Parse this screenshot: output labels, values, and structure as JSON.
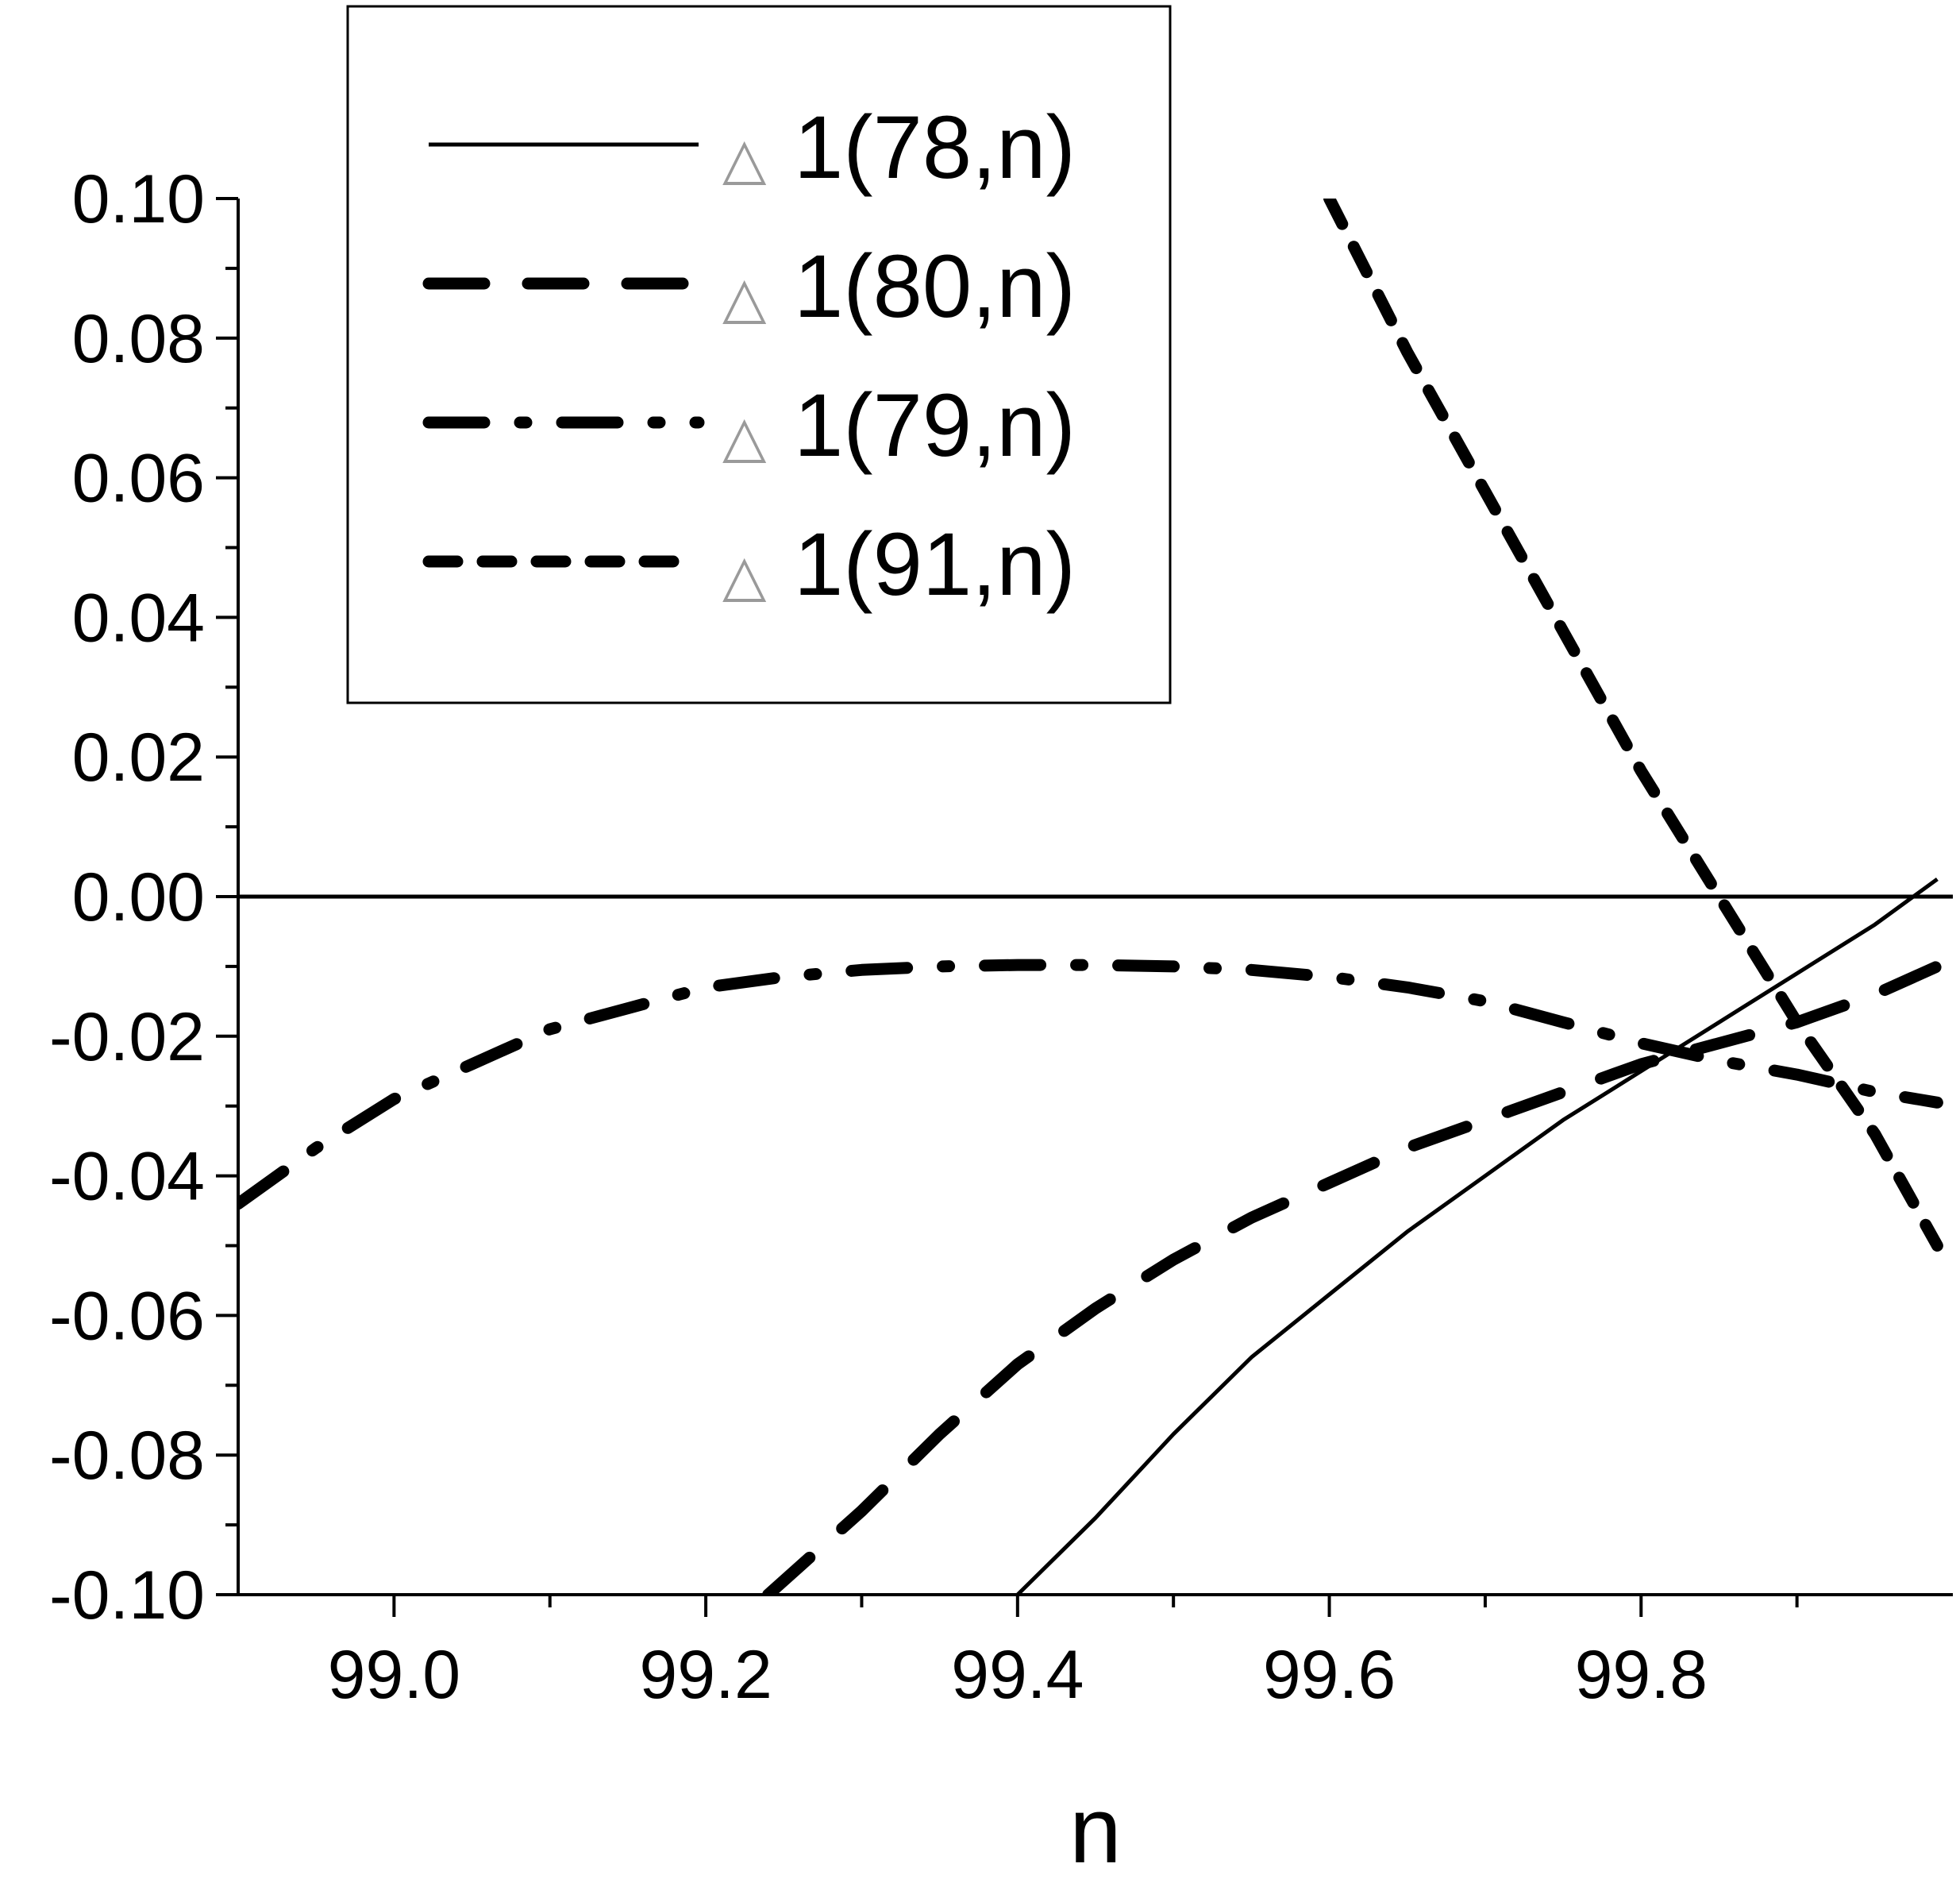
{
  "chart_data": {
    "type": "line",
    "title": "",
    "xlabel": "n",
    "ylabel": "",
    "xlim": [
      98.9,
      100.0
    ],
    "ylim": [
      -0.1,
      0.1
    ],
    "x_ticks": [
      99.0,
      99.2,
      99.4,
      99.6,
      99.8
    ],
    "x_tick_labels": [
      "99.0",
      "99.2",
      "99.4",
      "99.6",
      "99.8"
    ],
    "y_ticks": [
      0.1,
      0.08,
      0.06,
      0.04,
      0.02,
      0.0,
      -0.02,
      -0.04,
      -0.06,
      -0.08,
      -0.1
    ],
    "y_tick_labels": [
      "0.10",
      "0.08",
      "0.06",
      "0.04",
      "0.02",
      "0.00",
      "-0.02",
      "-0.04",
      "-0.06",
      "-0.08",
      "-0.10"
    ],
    "grid": false,
    "legend_position": "top-left",
    "reference_line": {
      "y": 0.0,
      "style": "solid"
    },
    "series": [
      {
        "name": "1(78,n)",
        "symbol": "△",
        "style": "solid",
        "x": [
          99.4,
          99.45,
          99.5,
          99.55,
          99.6,
          99.65,
          99.7,
          99.75,
          99.8,
          99.85,
          99.9,
          99.95,
          99.99
        ],
        "y": [
          -0.1,
          -0.089,
          -0.077,
          -0.066,
          -0.057,
          -0.048,
          -0.04,
          -0.032,
          -0.025,
          -0.018,
          -0.011,
          -0.004,
          0.0025
        ]
      },
      {
        "name": "1(80,n)",
        "symbol": "△",
        "style": "dash",
        "x": [
          99.24,
          99.3,
          99.35,
          99.4,
          99.45,
          99.5,
          99.55,
          99.6,
          99.65,
          99.7,
          99.75,
          99.8,
          99.85,
          99.9,
          99.95,
          99.99
        ],
        "y": [
          -0.1,
          -0.088,
          -0.077,
          -0.067,
          -0.059,
          -0.052,
          -0.046,
          -0.041,
          -0.036,
          -0.032,
          -0.028,
          -0.024,
          -0.021,
          -0.018,
          -0.014,
          -0.01
        ]
      },
      {
        "name": "1(79,n)",
        "symbol": "△",
        "style": "dash-dot",
        "x": [
          98.9,
          98.95,
          99.0,
          99.05,
          99.1,
          99.15,
          99.2,
          99.25,
          99.3,
          99.35,
          99.4,
          99.45,
          99.5,
          99.55,
          99.6,
          99.65,
          99.7,
          99.75,
          99.8,
          99.85,
          99.9,
          99.95,
          99.99
        ],
        "y": [
          -0.044,
          -0.036,
          -0.029,
          -0.024,
          -0.019,
          -0.016,
          -0.013,
          -0.0115,
          -0.0105,
          -0.01,
          -0.0098,
          -0.0098,
          -0.01,
          -0.0105,
          -0.0115,
          -0.013,
          -0.015,
          -0.018,
          -0.021,
          -0.0235,
          -0.0255,
          -0.028,
          -0.0295
        ]
      },
      {
        "name": "1(91,n)",
        "symbol": "△",
        "style": "dot",
        "x": [
          99.6,
          99.65,
          99.7,
          99.75,
          99.8,
          99.85,
          99.9,
          99.95,
          99.99
        ],
        "y": [
          0.1,
          0.078,
          0.058,
          0.038,
          0.018,
          0.0,
          -0.018,
          -0.034,
          -0.05
        ]
      }
    ]
  }
}
